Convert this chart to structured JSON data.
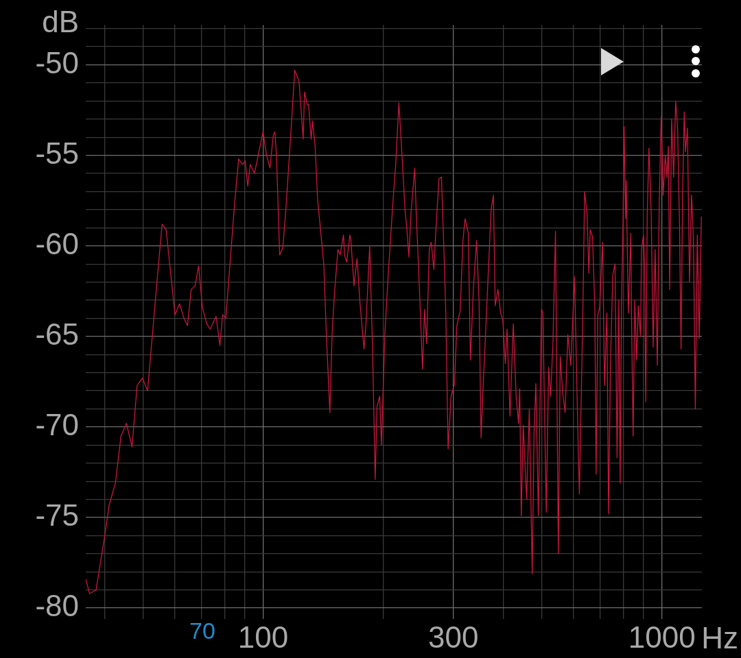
{
  "chart_data": {
    "type": "line",
    "xlabel": "Hz",
    "ylabel": "dB",
    "x": [
      35.9,
      36.7,
      38.1,
      40.0,
      41.1,
      42.6,
      44.0,
      45.4,
      46.9,
      48.3,
      49.8,
      51.3,
      54.4,
      55.8,
      57.1,
      60.1,
      61.7,
      63.3,
      64.6,
      66.0,
      67.5,
      68.9,
      70.4,
      72.2,
      73.6,
      76.2,
      77.9,
      79.1,
      80.6,
      84.7,
      86.8,
      88.8,
      90.1,
      91.5,
      92.8,
      95.1,
      99.9,
      102,
      104,
      106,
      107,
      108,
      110,
      112,
      114,
      117,
      120,
      123,
      126,
      127,
      129,
      130,
      132,
      133,
      135,
      137,
      139,
      142,
      144,
      147,
      149,
      151,
      154,
      156,
      159,
      160,
      162,
      165,
      166,
      169,
      172,
      175,
      179,
      181,
      185,
      188,
      191,
      193,
      196,
      198,
      202,
      206,
      212,
      215,
      219,
      223,
      227,
      229,
      232,
      235,
      240,
      242,
      247,
      251,
      254,
      257,
      261,
      264,
      268,
      271,
      276,
      280,
      284,
      287,
      291,
      296,
      302,
      306,
      312,
      317,
      321,
      327,
      331,
      337,
      343,
      348,
      352,
      356,
      362,
      373,
      378,
      382,
      388,
      394,
      399,
      405,
      409,
      416,
      424,
      431,
      437,
      440,
      444,
      449,
      458,
      465,
      473,
      478,
      483,
      490,
      499,
      503,
      513,
      520,
      526,
      533,
      541,
      550,
      556,
      564,
      572,
      581,
      591,
      604,
      616,
      621,
      634,
      640,
      649,
      656,
      661,
      670,
      679,
      684,
      691,
      698,
      710,
      718,
      728,
      735,
      743,
      753,
      763,
      772,
      780,
      786,
      792,
      799,
      804,
      811,
      814,
      824,
      836,
      839,
      847,
      855,
      865,
      873,
      884,
      889,
      899,
      905,
      911,
      919,
      928,
      940,
      951,
      962,
      974,
      985,
      996,
      1007,
      1020,
      1030,
      1038,
      1046,
      1058,
      1070,
      1083,
      1095,
      1107,
      1117,
      1127,
      1138,
      1146,
      1159,
      1173,
      1187,
      1200,
      1213,
      1227,
      1241,
      1256
    ],
    "values": [
      -78.4,
      -79.2,
      -79.0,
      -76.1,
      -74.3,
      -73.1,
      -70.5,
      -69.8,
      -71.1,
      -67.7,
      -67.3,
      -68.0,
      -61.5,
      -58.8,
      -59.1,
      -63.8,
      -63.2,
      -64.0,
      -64.4,
      -62.4,
      -62.2,
      -61.1,
      -63.4,
      -64.3,
      -64.6,
      -63.9,
      -65.5,
      -63.8,
      -64.0,
      -57.8,
      -55.2,
      -55.5,
      -55.3,
      -56.7,
      -55.5,
      -56.0,
      -53.7,
      -55.0,
      -55.7,
      -53.9,
      -53.7,
      -55.0,
      -60.5,
      -60.1,
      -58.0,
      -54.2,
      -50.3,
      -50.9,
      -54.1,
      -51.5,
      -52.2,
      -52.2,
      -54.1,
      -53.1,
      -54.5,
      -57.5,
      -58.9,
      -61.1,
      -64.8,
      -69.2,
      -64.7,
      -62.6,
      -60.2,
      -60.5,
      -59.4,
      -60.5,
      -60.9,
      -59.4,
      -59.7,
      -62.2,
      -60.7,
      -63.2,
      -65.7,
      -64.4,
      -60.0,
      -65.5,
      -72.9,
      -68.9,
      -68.3,
      -71.0,
      -64.8,
      -61.5,
      -57.3,
      -55.5,
      -52.1,
      -55.0,
      -58.1,
      -58.9,
      -60.6,
      -58.1,
      -55.7,
      -58.1,
      -62.8,
      -66.8,
      -63.5,
      -65.4,
      -60.2,
      -59.8,
      -61.3,
      -59.2,
      -56.3,
      -56.2,
      -60.2,
      -63.5,
      -71.2,
      -68.3,
      -67.6,
      -64.4,
      -63.6,
      -59.7,
      -58.5,
      -59.3,
      -66.3,
      -62.2,
      -59.7,
      -63.1,
      -70.6,
      -67.9,
      -64.4,
      -58.0,
      -57.2,
      -63.3,
      -62.4,
      -63.7,
      -64.1,
      -66.5,
      -64.6,
      -69.4,
      -64.3,
      -68.3,
      -69.8,
      -67.9,
      -74.9,
      -69.9,
      -74.0,
      -69.0,
      -78.1,
      -70.3,
      -67.6,
      -74.9,
      -63.5,
      -63.7,
      -74.7,
      -66.7,
      -68.3,
      -65.4,
      -59.2,
      -77.0,
      -66.1,
      -68.1,
      -69.2,
      -64.9,
      -66.6,
      -61.7,
      -70.6,
      -73.7,
      -63.3,
      -57.0,
      -58.2,
      -61.5,
      -59.1,
      -59.5,
      -63.4,
      -72.6,
      -63.8,
      -63.4,
      -59.8,
      -67.7,
      -63.7,
      -74.8,
      -66.6,
      -61.6,
      -61.0,
      -71.7,
      -63.0,
      -73.1,
      -63.3,
      -58.7,
      -53.4,
      -58.5,
      -56.4,
      -63.7,
      -59.3,
      -63.8,
      -70.5,
      -63.0,
      -66.3,
      -63.3,
      -65.0,
      -60.2,
      -59.4,
      -61.1,
      -68.6,
      -58.2,
      -54.6,
      -58.1,
      -65.6,
      -60.2,
      -66.6,
      -57.6,
      -52.9,
      -57.2,
      -55.0,
      -56.2,
      -54.5,
      -62.4,
      -53.0,
      -56.2,
      -52.0,
      -53.5,
      -58.7,
      -65.7,
      -57.2,
      -52.6,
      -54.8,
      -53.5,
      -62.0,
      -57.2,
      -59.6,
      -69.0,
      -59.4,
      -65.1,
      -58.4
    ],
    "color": "#c8173c",
    "xlim": [
      35.9,
      1260
    ],
    "ylim": [
      -80.6,
      -47.8
    ],
    "log": "x",
    "xticks": [
      {
        "value": 40,
        "label": null
      },
      {
        "value": 50,
        "label": null
      },
      {
        "value": 60,
        "label": null
      },
      {
        "value": 70,
        "label": null
      },
      {
        "value": 80,
        "label": null
      },
      {
        "value": 90,
        "label": null
      },
      100,
      {
        "value": 200,
        "label": null
      },
      300,
      {
        "value": 400,
        "label": null
      },
      {
        "value": 500,
        "label": null
      },
      {
        "value": 600,
        "label": null
      },
      {
        "value": 700,
        "label": null
      },
      {
        "value": 800,
        "label": null
      },
      {
        "value": 900,
        "label": null
      },
      1000
    ],
    "yticks": [
      -80,
      {
        "value": -79,
        "label": null
      },
      {
        "value": -78,
        "label": null
      },
      {
        "value": -77,
        "label": null
      },
      {
        "value": -76,
        "label": null
      },
      -75,
      {
        "value": -74,
        "label": null
      },
      {
        "value": -73,
        "label": null
      },
      {
        "value": -72,
        "label": null
      },
      {
        "value": -71,
        "label": null
      },
      -70,
      {
        "value": -69,
        "label": null
      },
      {
        "value": -68,
        "label": null
      },
      {
        "value": -67,
        "label": null
      },
      {
        "value": -66,
        "label": null
      },
      -65,
      {
        "value": -64,
        "label": null
      },
      {
        "value": -63,
        "label": null
      },
      {
        "value": -62,
        "label": null
      },
      {
        "value": -61,
        "label": null
      },
      -60,
      {
        "value": -59,
        "label": null
      },
      {
        "value": -58,
        "label": null
      },
      {
        "value": -57,
        "label": null
      },
      {
        "value": -56,
        "label": null
      },
      -55,
      {
        "value": -54,
        "label": null
      },
      {
        "value": -53,
        "label": null
      },
      {
        "value": -52,
        "label": null
      },
      {
        "value": -51,
        "label": null
      },
      -50,
      {
        "value": -49,
        "label": null
      },
      {
        "value": -48,
        "label": null
      }
    ],
    "grid": true,
    "marker": "none",
    "line_style": "solid",
    "annotations": [
      "70"
    ]
  }
}
